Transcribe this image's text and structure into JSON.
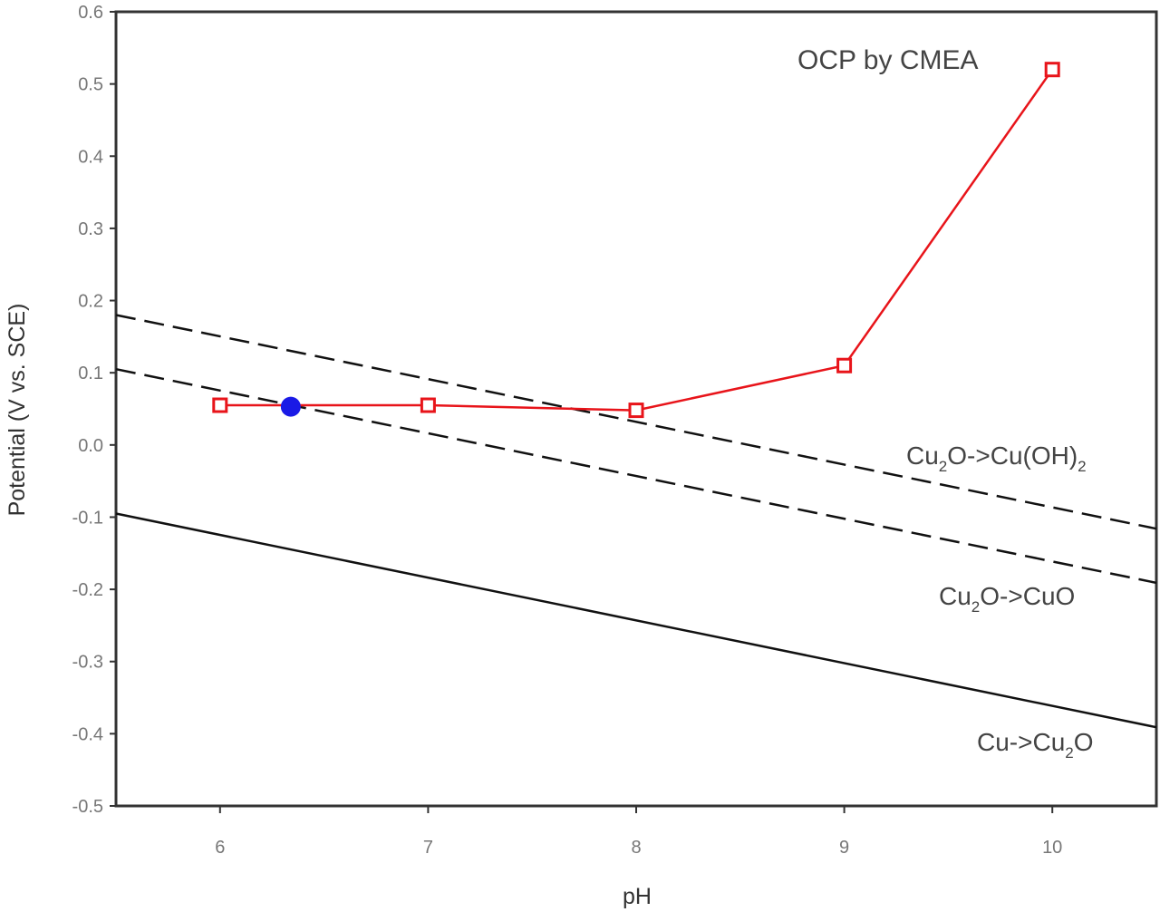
{
  "chart_data": {
    "type": "line",
    "title": "",
    "xlabel": "pH",
    "ylabel": "Potential (V vs. SCE)",
    "xlim": [
      5.5,
      10.5
    ],
    "ylim": [
      -0.5,
      0.6
    ],
    "x_ticks": [
      "6",
      "7",
      "8",
      "9",
      "10"
    ],
    "y_ticks": [
      "0.6",
      "0.5",
      "0.4",
      "0.3",
      "0.2",
      "0.1",
      "0.0",
      "-0.1",
      "-0.2",
      "-0.3",
      "-0.4",
      "-0.5"
    ],
    "grid": false,
    "colors": {
      "ocp": "#e8141a",
      "blue_point": "#1a1ae6",
      "equilibrium": "#111111"
    },
    "series": [
      {
        "name": "OCP by CMEA",
        "style": "solid-line-open-square-markers",
        "x": [
          6,
          7,
          8,
          9,
          10
        ],
        "y": [
          0.055,
          0.055,
          0.048,
          0.11,
          0.52
        ]
      }
    ],
    "point": {
      "x": 6.34,
      "y": 0.053
    },
    "equilibrium_lines": [
      {
        "label_main": "Cu",
        "label_sub": "2",
        "label_rest": "O->Cu(OH)",
        "label_sub2": "2",
        "style": "dashed",
        "x": [
          5.5,
          10.5
        ],
        "y": [
          0.18,
          -0.116
        ]
      },
      {
        "label_main": "Cu",
        "label_sub": "2",
        "label_rest": "O->CuO",
        "label_sub2": "",
        "style": "dashed",
        "x": [
          5.5,
          10.5
        ],
        "y": [
          0.105,
          -0.191
        ]
      },
      {
        "label_main": "Cu->Cu",
        "label_sub": "2",
        "label_rest": "O",
        "label_sub2": "",
        "style": "solid",
        "x": [
          5.5,
          10.5
        ],
        "y": [
          -0.095,
          -0.391
        ]
      }
    ],
    "annotation": "OCP by CMEA"
  }
}
